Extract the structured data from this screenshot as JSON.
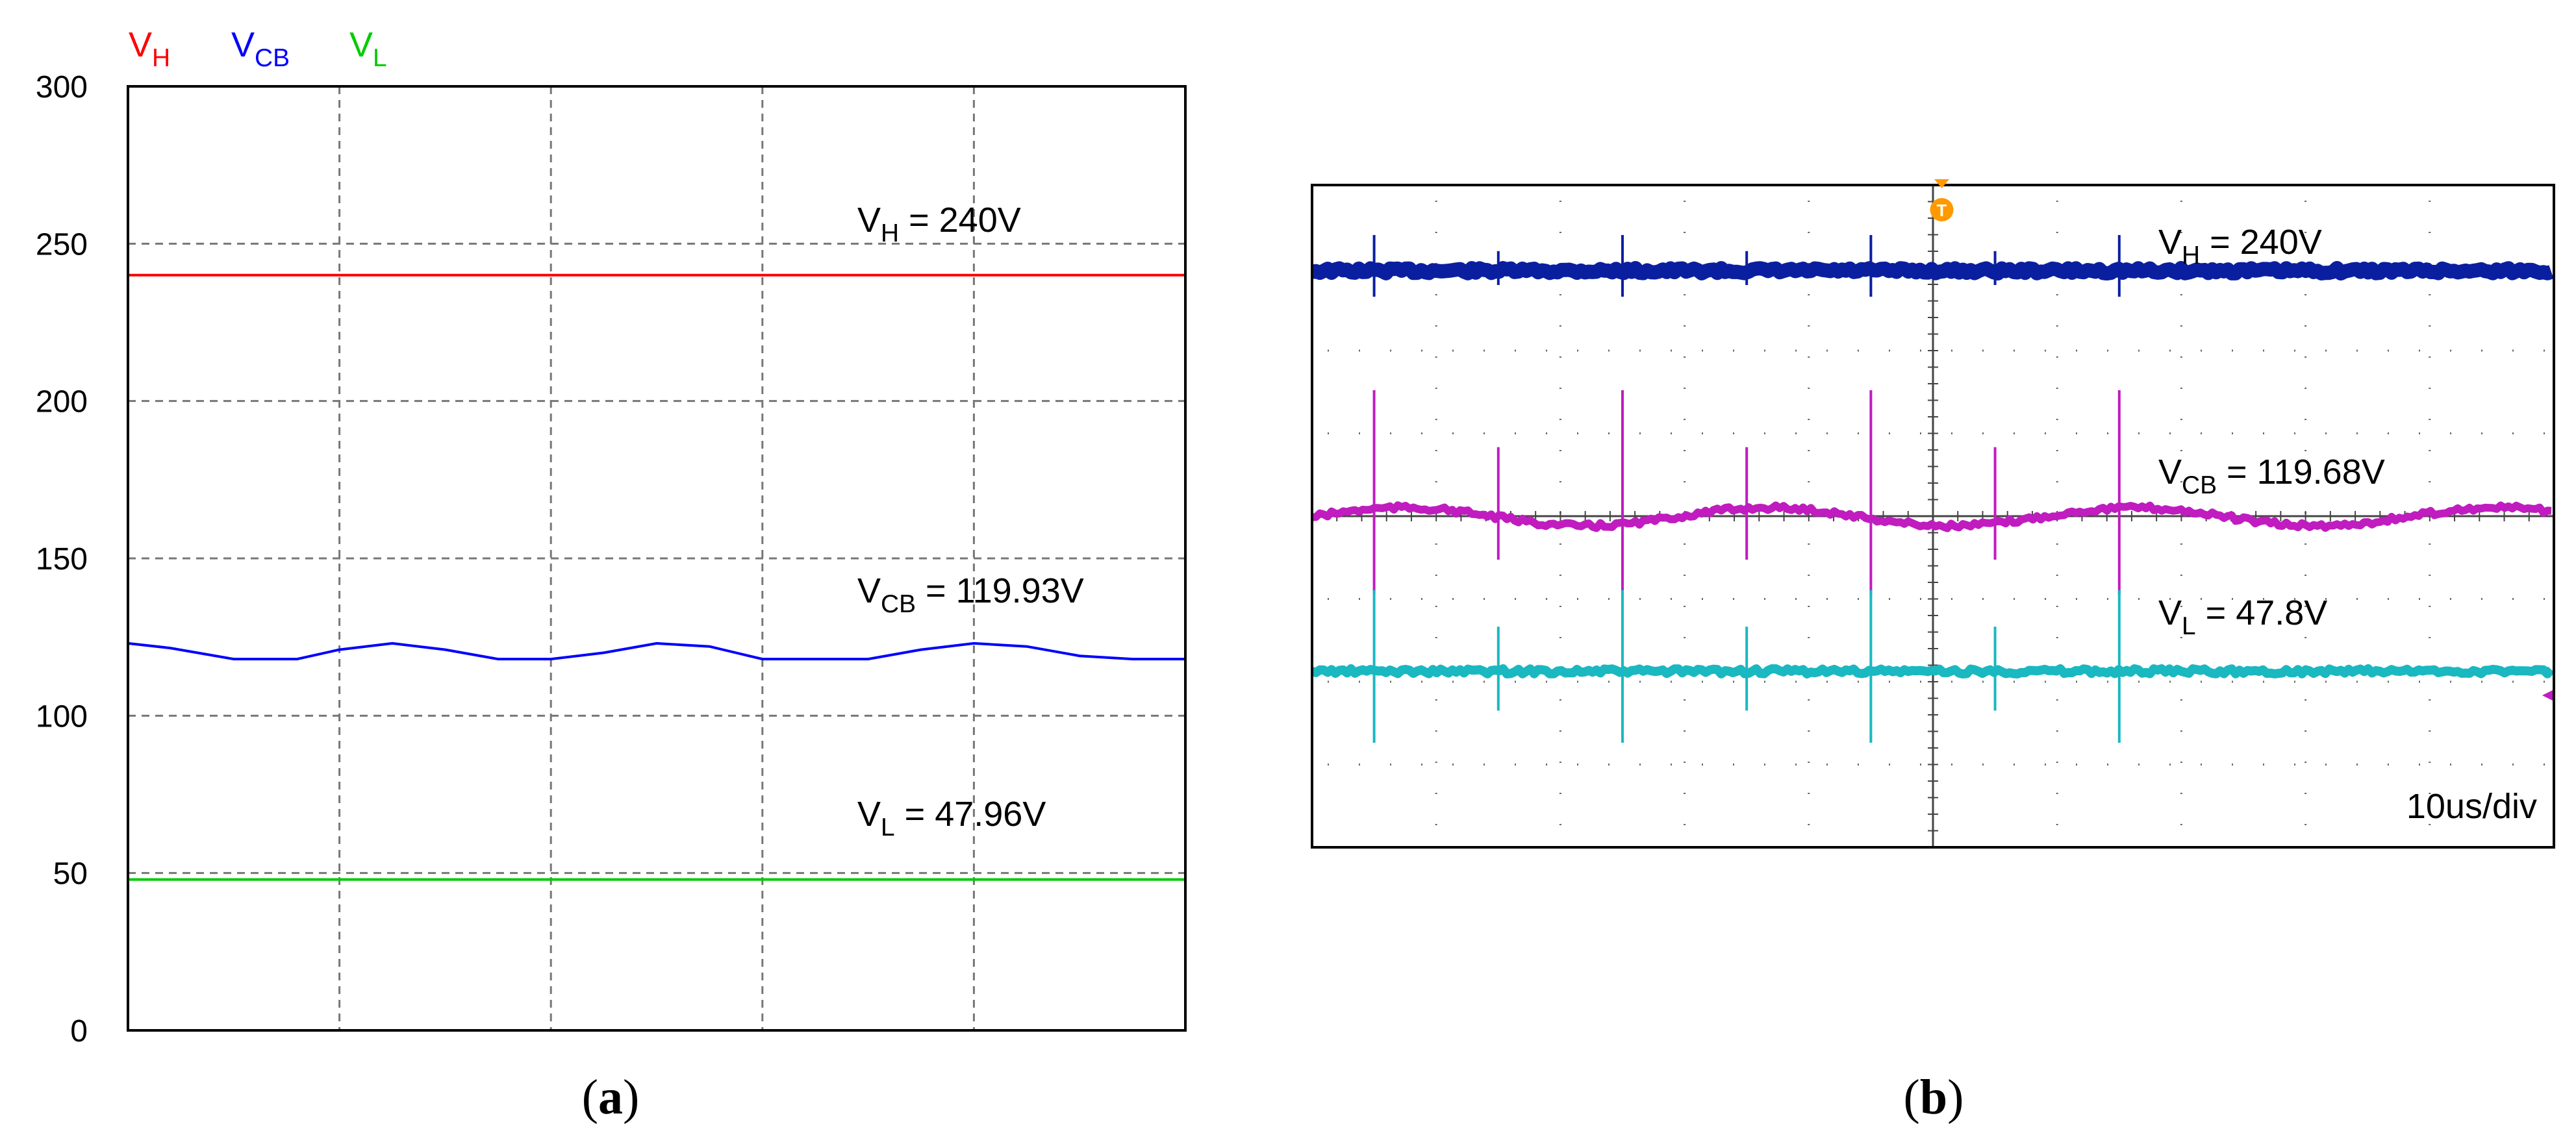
{
  "chart_data": [
    {
      "panel": "a",
      "type": "line",
      "legend": [
        {
          "base": "V",
          "sub": "H",
          "color": "#ff0000"
        },
        {
          "base": "V",
          "sub": "CB",
          "color": "#0000ff"
        },
        {
          "base": "V",
          "sub": "L",
          "color": "#00cc00"
        }
      ],
      "ylim": [
        0,
        300
      ],
      "y_ticks": [
        "0",
        "50",
        "100",
        "150",
        "200",
        "250",
        "300"
      ],
      "x_divisions": 5,
      "grid": true,
      "series": [
        {
          "name": "VH",
          "color": "#ff0000",
          "x": [
            0,
            1
          ],
          "y": [
            240,
            240
          ]
        },
        {
          "name": "VCB",
          "color": "#0000ff",
          "x": [
            0,
            0.04,
            0.1,
            0.16,
            0.2,
            0.25,
            0.3,
            0.35,
            0.4,
            0.45,
            0.5,
            0.55,
            0.6,
            0.66,
            0.7,
            0.75,
            0.8,
            0.85,
            0.9,
            0.95,
            1.0
          ],
          "y": [
            123,
            121.5,
            118,
            118,
            121,
            123,
            121,
            118,
            118,
            120,
            123,
            122,
            118,
            118,
            118,
            121,
            123,
            122,
            119,
            118,
            118
          ]
        },
        {
          "name": "VL",
          "color": "#00cc00",
          "x": [
            0,
            1
          ],
          "y": [
            47.96,
            47.96
          ]
        }
      ],
      "annotations": [
        {
          "base": "V",
          "sub": "H",
          "rest": " = 240V"
        },
        {
          "base": "V",
          "sub": "CB",
          "rest": " = 119.93V"
        },
        {
          "base": "V",
          "sub": "L",
          "rest": " = 47.96V"
        }
      ],
      "caption": "a"
    },
    {
      "panel": "b",
      "type": "line",
      "x_divisions": 10,
      "y_divisions": 8,
      "grid": true,
      "timebase_label": "10us/div",
      "trigger_marker": "T",
      "series": [
        {
          "name": "VH",
          "color": "#0a1fa0",
          "level": 240
        },
        {
          "name": "VCB",
          "color": "#c01cc0",
          "level": 119.68
        },
        {
          "name": "VL",
          "color": "#1ab8c0",
          "level": 47.8
        }
      ],
      "spike_x_divs": [
        0.5,
        1.5,
        2.5,
        3.5,
        4.5,
        5.5,
        6.5
      ],
      "annotations": [
        {
          "base": "V",
          "sub": "H",
          "rest": " = 240V"
        },
        {
          "base": "V",
          "sub": "CB",
          "rest": " = 119.68V"
        },
        {
          "base": "V",
          "sub": "L",
          "rest": " = 47.8V"
        }
      ],
      "caption": "b"
    }
  ]
}
